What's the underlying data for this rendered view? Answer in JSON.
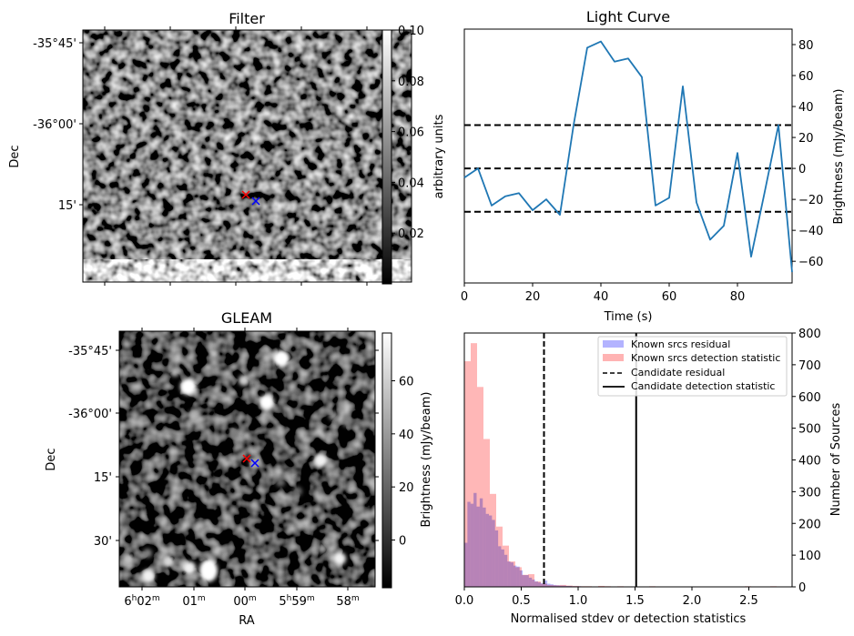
{
  "chart_data": [
    {
      "type": "heatmap",
      "title": "Filter",
      "xlabel": "",
      "ylabel": "Dec",
      "yticks": [
        "-35°45'",
        "-36°00'",
        "15'"
      ],
      "x_tick_count": 5,
      "colorbar": {
        "label": "arbitrary units",
        "ticks": [
          "0.02",
          "0.04",
          "0.06",
          "0.08",
          "0.10"
        ],
        "range": [
          0.0,
          0.1
        ],
        "cmap": "gray"
      },
      "markers": [
        {
          "symbol": "x",
          "color": "#ff0000",
          "label": "red-marker"
        },
        {
          "symbol": "x",
          "color": "#0000ff",
          "label": "blue-marker"
        }
      ]
    },
    {
      "type": "line",
      "title": "Light Curve",
      "xlabel": "Time (s)",
      "ylabel_left": "arbitrary units",
      "ylabel": "Brightness (mJy/beam)",
      "xlim": [
        0,
        96
      ],
      "ylim": [
        -74,
        90
      ],
      "xticks": [
        0,
        20,
        40,
        60,
        80
      ],
      "yticks": [
        -60,
        -40,
        -20,
        0,
        20,
        40,
        60,
        80
      ],
      "grid": false,
      "x": [
        0,
        4,
        8,
        12,
        16,
        20,
        24,
        28,
        32,
        36,
        40,
        44,
        48,
        52,
        56,
        60,
        64,
        68,
        72,
        76,
        80,
        84,
        88,
        92,
        96
      ],
      "series": [
        {
          "name": "light-curve",
          "color": "#1f77b4",
          "values": [
            -6,
            0,
            -24,
            -18,
            -16,
            -27,
            -20,
            -30,
            28,
            78,
            82,
            69,
            71,
            59,
            -24,
            -19,
            53,
            -22,
            -46,
            -37,
            10,
            -57,
            -15,
            28,
            -67
          ]
        }
      ],
      "hlines": [
        {
          "y": 28,
          "style": "dashed",
          "color": "#000000"
        },
        {
          "y": 0,
          "style": "dashed",
          "color": "#000000"
        },
        {
          "y": -28,
          "style": "dashed",
          "color": "#000000"
        }
      ]
    },
    {
      "type": "heatmap",
      "title": "GLEAM",
      "xlabel": "RA",
      "ylabel": "Dec",
      "xticks": [
        "6h02m",
        "01m",
        "00m",
        "5h59m",
        "58m"
      ],
      "yticks": [
        "-35°45'",
        "-36°00'",
        "15'",
        "30'"
      ],
      "colorbar": {
        "label": "Brightness (mJy/beam)",
        "ticks": [
          "0",
          "20",
          "40",
          "60"
        ],
        "range": [
          -18,
          78
        ],
        "cmap": "gray"
      },
      "markers": [
        {
          "symbol": "x",
          "color": "#ff0000",
          "label": "red-marker"
        },
        {
          "symbol": "x",
          "color": "#0000ff",
          "label": "blue-marker"
        }
      ]
    },
    {
      "type": "bar",
      "title": "",
      "xlabel": "Normalised stdev or detection statistics",
      "ylabel": "Number of Sources",
      "xlim": [
        0,
        2.88
      ],
      "ylim": [
        0,
        800
      ],
      "xticks": [
        "0.0",
        "0.5",
        "1.0",
        "1.5",
        "2.0",
        "2.5"
      ],
      "yticks": [
        "0",
        "100",
        "200",
        "300",
        "400",
        "500",
        "600",
        "700",
        "800"
      ],
      "legend_position": "top-right",
      "legend": [
        "Known srcs residual",
        "Known srcs detection statistic",
        "Candidate residual",
        "Candidate detection statistic"
      ],
      "series": [
        {
          "name": "Known srcs residual",
          "color": "#b3b3ff",
          "bin_start": 0.0,
          "bin_width": 0.027,
          "values": [
            139,
            268,
            262,
            296,
            253,
            279,
            250,
            230,
            225,
            211,
            178,
            128,
            118,
            101,
            80,
            77,
            67,
            64,
            52,
            37,
            37,
            29,
            23,
            17,
            14,
            11,
            20,
            10,
            8,
            6,
            5,
            4,
            4,
            3,
            3,
            2,
            2,
            2,
            1,
            1,
            1,
            1,
            0,
            0,
            1,
            1,
            0,
            0,
            0,
            0,
            0,
            0,
            0,
            0,
            0,
            0,
            0,
            0,
            0,
            0,
            0,
            0,
            0,
            0,
            0,
            0,
            0,
            0,
            0,
            0,
            0,
            0,
            0,
            0,
            0,
            0,
            0,
            0,
            0,
            0,
            0,
            0,
            0,
            0,
            0,
            0,
            0,
            0,
            0,
            0,
            0,
            0,
            0,
            0,
            0,
            0,
            0,
            0,
            0,
            0,
            0,
            0,
            0,
            0,
            0,
            0
          ]
        },
        {
          "name": "Known srcs detection statistic",
          "color": "#ffb3b3",
          "bin_start": 0.0,
          "bin_width": 0.056,
          "values": [
            711,
            768,
            630,
            466,
            293,
            190,
            130,
            80,
            62,
            38,
            40,
            17,
            10,
            6,
            5,
            6,
            4,
            3,
            2,
            2,
            1,
            3,
            2,
            1,
            2,
            1,
            1,
            0,
            0,
            2,
            0,
            0,
            0,
            0,
            0,
            0,
            0,
            0,
            0,
            0,
            0,
            0,
            0,
            0,
            2,
            0,
            0,
            0,
            2,
            0,
            0
          ]
        }
      ],
      "vlines": [
        {
          "name": "Candidate residual",
          "x": 0.7,
          "style": "dashed",
          "color": "#000000"
        },
        {
          "name": "Candidate detection statistic",
          "x": 1.51,
          "style": "solid",
          "color": "#000000"
        }
      ]
    }
  ]
}
